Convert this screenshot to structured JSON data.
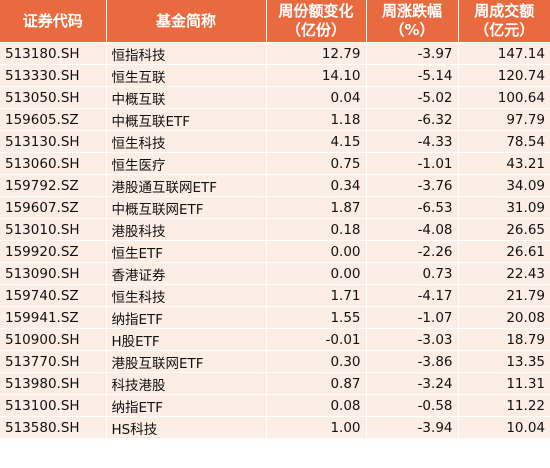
{
  "table": {
    "headers": {
      "code": "证券代码",
      "name": "基金简称",
      "share_change": [
        "周份额变化",
        "（亿份）"
      ],
      "weekly_change": [
        "周涨跌幅",
        "（%）"
      ],
      "turnover": [
        "周成交额",
        "（亿元）"
      ]
    },
    "rows": [
      {
        "code": "513180.SH",
        "name": "恒指科技",
        "share_change": "12.79",
        "weekly_change": "-3.97",
        "turnover": "147.14"
      },
      {
        "code": "513330.SH",
        "name": "恒生互联",
        "share_change": "14.10",
        "weekly_change": "-5.14",
        "turnover": "120.74"
      },
      {
        "code": "513050.SH",
        "name": "中概互联",
        "share_change": "0.04",
        "weekly_change": "-5.02",
        "turnover": "100.64"
      },
      {
        "code": "159605.SZ",
        "name": "中概互联ETF",
        "share_change": "1.18",
        "weekly_change": "-6.32",
        "turnover": "97.79"
      },
      {
        "code": "513130.SH",
        "name": "恒生科技",
        "share_change": "4.15",
        "weekly_change": "-4.33",
        "turnover": "78.54"
      },
      {
        "code": "513060.SH",
        "name": "恒生医疗",
        "share_change": "0.75",
        "weekly_change": "-1.01",
        "turnover": "43.21"
      },
      {
        "code": "159792.SZ",
        "name": "港股通互联网ETF",
        "share_change": "0.34",
        "weekly_change": "-3.76",
        "turnover": "34.09"
      },
      {
        "code": "159607.SZ",
        "name": "中概互联网ETF",
        "share_change": "1.87",
        "weekly_change": "-6.53",
        "turnover": "31.09"
      },
      {
        "code": "513010.SH",
        "name": "港股科技",
        "share_change": "0.18",
        "weekly_change": "-4.08",
        "turnover": "26.65"
      },
      {
        "code": "159920.SZ",
        "name": "恒生ETF",
        "share_change": "0.00",
        "weekly_change": "-2.26",
        "turnover": "26.61"
      },
      {
        "code": "513090.SH",
        "name": "香港证券",
        "share_change": "0.00",
        "weekly_change": "0.73",
        "turnover": "22.43"
      },
      {
        "code": "159740.SZ",
        "name": "恒生科技",
        "share_change": "1.71",
        "weekly_change": "-4.17",
        "turnover": "21.79"
      },
      {
        "code": "159941.SZ",
        "name": "纳指ETF",
        "share_change": "1.55",
        "weekly_change": "-1.07",
        "turnover": "20.08"
      },
      {
        "code": "510900.SH",
        "name": "H股ETF",
        "share_change": "-0.01",
        "weekly_change": "-3.03",
        "turnover": "18.79"
      },
      {
        "code": "513770.SH",
        "name": "港股互联网ETF",
        "share_change": "0.30",
        "weekly_change": "-3.86",
        "turnover": "13.35"
      },
      {
        "code": "513980.SH",
        "name": "科技港股",
        "share_change": "0.87",
        "weekly_change": "-3.24",
        "turnover": "11.31"
      },
      {
        "code": "513100.SH",
        "name": "纳指ETF",
        "share_change": "0.08",
        "weekly_change": "-0.58",
        "turnover": "11.22"
      },
      {
        "code": "513580.SH",
        "name": "HS科技",
        "share_change": "1.00",
        "weekly_change": "-3.94",
        "turnover": "10.04"
      }
    ]
  }
}
